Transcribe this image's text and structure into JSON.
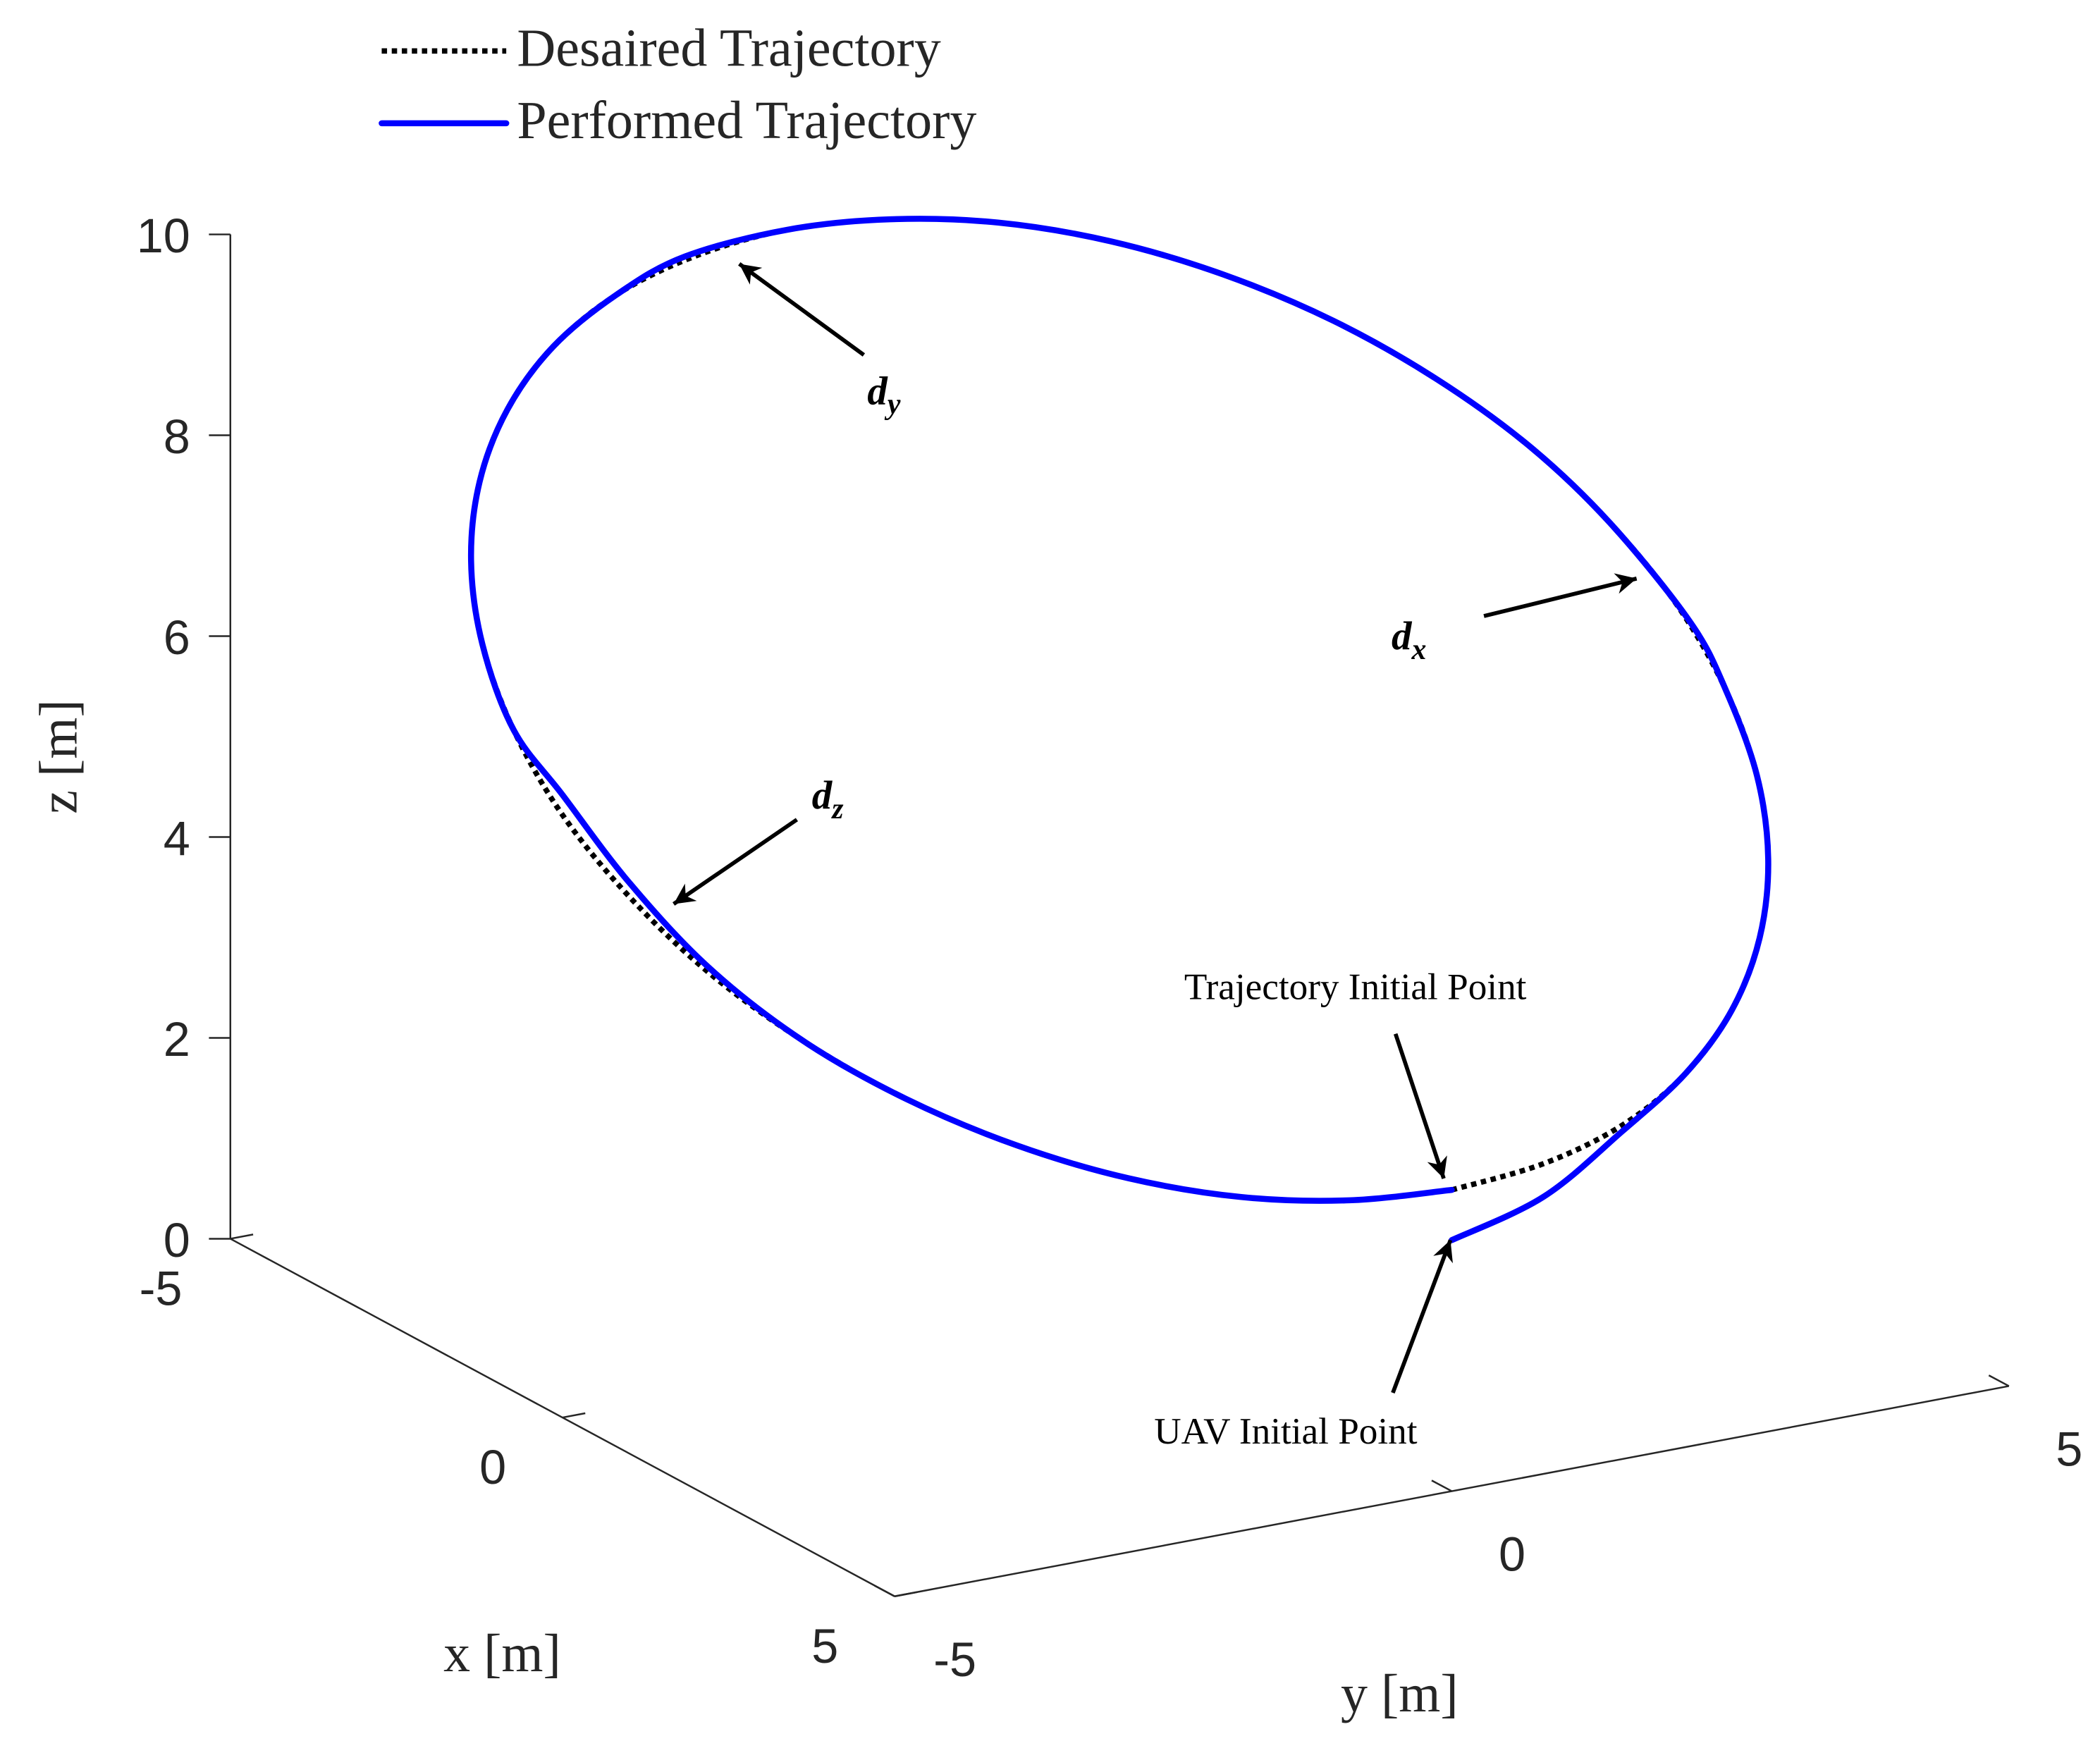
{
  "chart_data": {
    "type": "line3d",
    "xlabel": "x [m]",
    "ylabel": "y [m]",
    "zlabel": "z [m]",
    "xlim": [
      -5,
      5
    ],
    "ylim": [
      -5,
      5
    ],
    "zlim": [
      0,
      10
    ],
    "xticks": [
      -5,
      0,
      5
    ],
    "yticks": [
      -5,
      0,
      5
    ],
    "zticks": [
      0,
      2,
      4,
      6,
      8,
      10
    ],
    "legend": "upper left",
    "series": [
      {
        "name": "Desaired Trajectory",
        "color": "#000000",
        "style": "dotted",
        "x": [
          5,
          4.92,
          4.7,
          4.33,
          3.83,
          3.21,
          2.5,
          1.71,
          0.87,
          0,
          -0.87,
          -1.71,
          -2.5,
          -3.21,
          -3.83,
          -4.33,
          -4.7,
          -4.92,
          -5,
          -4.92,
          -4.7,
          -4.33,
          -3.83,
          -3.21,
          -2.5,
          -1.71,
          -0.87,
          0,
          0.87,
          1.71,
          2.5,
          3.21,
          3.83,
          4.33,
          4.7,
          4.92,
          5
        ],
        "y": [
          0,
          0.87,
          1.71,
          2.5,
          3.21,
          3.83,
          4.33,
          4.7,
          4.92,
          5,
          4.92,
          4.7,
          4.33,
          3.83,
          3.21,
          2.5,
          1.71,
          0.87,
          0,
          -0.87,
          -1.71,
          -2.5,
          -3.21,
          -3.83,
          -4.33,
          -4.7,
          -4.92,
          -5,
          -4.92,
          -4.7,
          -4.33,
          -3.83,
          -3.21,
          -2.5,
          -1.71,
          -0.87,
          0
        ],
        "z": [
          3,
          3.05,
          3.18,
          3.4,
          3.7,
          4.07,
          4.5,
          4.97,
          5.48,
          6,
          6.52,
          7.03,
          7.5,
          7.93,
          8.3,
          8.6,
          8.82,
          8.95,
          9,
          8.95,
          8.82,
          8.6,
          8.3,
          7.93,
          7.5,
          7.03,
          6.52,
          6,
          5.48,
          4.97,
          4.5,
          4.07,
          3.7,
          3.4,
          3.18,
          3.05,
          3
        ]
      },
      {
        "name": "Performed Trajectory",
        "color": "#0000ff",
        "style": "solid",
        "x": [
          5,
          4.92,
          4.7,
          4.33,
          3.83,
          3.21,
          2.5,
          1.71,
          0.87,
          0.2,
          -0.87,
          -1.71,
          -2.5,
          -3.21,
          -3.83,
          -4.33,
          -4.7,
          -4.92,
          -5,
          -4.95,
          -4.7,
          -4.33,
          -3.83,
          -3.21,
          -2.5,
          -1.71,
          -0.87,
          0,
          0.87,
          1.71,
          2.5,
          3.21,
          3.83,
          4.33,
          4.7,
          4.92,
          5
        ],
        "y": [
          0,
          0.87,
          1.71,
          2.5,
          3.21,
          3.83,
          4.33,
          4.7,
          4.92,
          5,
          4.92,
          4.7,
          4.33,
          3.83,
          3.21,
          2.5,
          1.71,
          0.87,
          0,
          -0.95,
          -1.71,
          -2.5,
          -3.21,
          -3.83,
          -4.33,
          -4.7,
          -4.92,
          -5,
          -4.92,
          -4.7,
          -4.33,
          -3.83,
          -3.21,
          -2.5,
          -1.71,
          -0.87,
          0
        ],
        "z": [
          2.5,
          2.72,
          3.12,
          3.4,
          3.7,
          4.07,
          4.5,
          4.97,
          5.48,
          5.9,
          6.52,
          7.03,
          7.5,
          7.93,
          8.3,
          8.6,
          8.82,
          8.95,
          9,
          8.95,
          8.82,
          8.6,
          8.3,
          7.93,
          7.5,
          7.03,
          6.52,
          6.2,
          5.62,
          5.02,
          4.5,
          4.07,
          3.7,
          3.4,
          3.18,
          3.05,
          3
        ]
      }
    ],
    "annotations": [
      {
        "text": "d",
        "subscript": "y"
      },
      {
        "text": "d",
        "subscript": "x"
      },
      {
        "text": "d",
        "subscript": "z"
      },
      {
        "text": "Trajectory Initial Point"
      },
      {
        "text": "UAV Initial Point"
      }
    ]
  }
}
